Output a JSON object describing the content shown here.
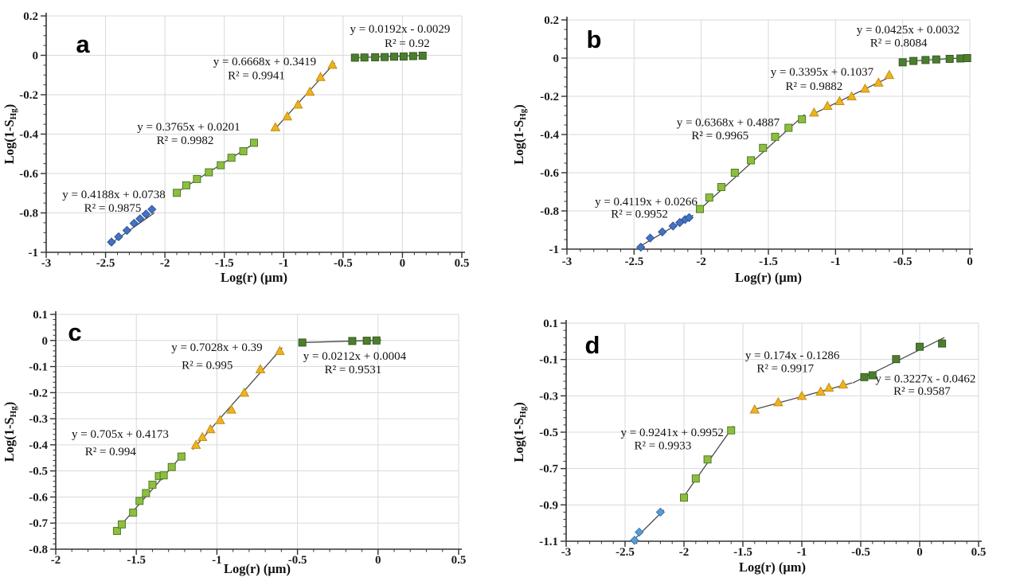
{
  "figure_title": "",
  "chart_data": [
    {
      "type": "scatter",
      "panel_label": "a",
      "xlabel": "Log(r) (μm)",
      "ylabel_parts": [
        "Log(1-S",
        "Hg",
        ")"
      ],
      "xlim": [
        -3,
        0.5
      ],
      "ylim": [
        -1,
        0.2
      ],
      "xticks": [
        -3,
        -2.5,
        -2,
        -1.5,
        -1,
        -0.5,
        0,
        0.5
      ],
      "yticks": [
        0.2,
        0,
        -0.2,
        -0.4,
        -0.6,
        -0.8,
        -1
      ],
      "x_minor_step": 0.1,
      "y_minor_step": 0.05,
      "grid": true,
      "legend": "none",
      "series": [
        {
          "name": "segment-1-blue-diamonds",
          "marker": "diamond",
          "fill": "#4472C4",
          "stroke": "#2E5597",
          "points": [
            [
              -2.45,
              -0.948
            ],
            [
              -2.39,
              -0.921
            ],
            [
              -2.32,
              -0.889
            ],
            [
              -2.26,
              -0.853
            ],
            [
              -2.21,
              -0.83
            ],
            [
              -2.16,
              -0.806
            ],
            [
              -2.11,
              -0.782
            ]
          ],
          "trend": [
            -2.47,
            -0.961,
            -2.09,
            -0.8
          ],
          "equation": {
            "line1": "y = 0.4188x + 0.0738",
            "line2": "R² = 0.9875",
            "pos1": [
              -2.43,
              -0.706
            ],
            "pos2": [
              -2.44,
              -0.773
            ]
          }
        },
        {
          "name": "segment-2-green-squares",
          "marker": "square",
          "fill": "#8EBE3E",
          "stroke": "#4F7B28",
          "points": [
            [
              -1.9,
              -0.698
            ],
            [
              -1.82,
              -0.66
            ],
            [
              -1.73,
              -0.628
            ],
            [
              -1.63,
              -0.594
            ],
            [
              -1.53,
              -0.558
            ],
            [
              -1.44,
              -0.52
            ],
            [
              -1.34,
              -0.487
            ],
            [
              -1.25,
              -0.444
            ]
          ],
          "trend": [
            -1.93,
            -0.707,
            -1.23,
            -0.441
          ],
          "equation": {
            "line1": "y = 0.3765x + 0.0201",
            "line2": "R² = 0.9982",
            "pos1": [
              -1.8,
              -0.362
            ],
            "pos2": [
              -1.83,
              -0.43
            ]
          }
        },
        {
          "name": "segment-3-orange-triangles",
          "marker": "triangle",
          "fill": "#EFB320",
          "stroke": "#C28E12",
          "points": [
            [
              -1.07,
              -0.365
            ],
            [
              -0.97,
              -0.31
            ],
            [
              -0.88,
              -0.25
            ],
            [
              -0.78,
              -0.185
            ],
            [
              -0.69,
              -0.11
            ],
            [
              -0.59,
              -0.048
            ]
          ],
          "trend": [
            -1.09,
            -0.385,
            -0.57,
            -0.038
          ],
          "equation": {
            "line1": "y = 0.6668x + 0.3419",
            "line2": "R² = 0.9941",
            "pos1": [
              -1.16,
              -0.03
            ],
            "pos2": [
              -1.23,
              -0.1
            ]
          }
        },
        {
          "name": "segment-4-dark-green-squares",
          "marker": "square",
          "fill": "#4B7F2F",
          "stroke": "#38591F",
          "points": [
            [
              -0.4,
              -0.012
            ],
            [
              -0.32,
              -0.011
            ],
            [
              -0.23,
              -0.01
            ],
            [
              -0.15,
              -0.009
            ],
            [
              -0.07,
              -0.007
            ],
            [
              0.01,
              -0.006
            ],
            [
              0.09,
              -0.004
            ],
            [
              0.17,
              -0.002
            ]
          ],
          "trend": [
            -0.42,
            -0.012,
            0.19,
            0.0
          ],
          "equation": {
            "line1": "y = 0.0192x - 0.0029",
            "line2": "R² = 0.92",
            "pos1": [
              -0.02,
              0.135
            ],
            "pos2": [
              0.04,
              0.062
            ]
          }
        }
      ]
    },
    {
      "type": "scatter",
      "panel_label": "b",
      "xlabel": "Log(r) (μm)",
      "ylabel_parts": [
        "Log(1-S",
        "Hg",
        ")"
      ],
      "xlim": [
        -3,
        0
      ],
      "ylim": [
        -1,
        0.2
      ],
      "xticks": [
        -3,
        -2.5,
        -2,
        -1.5,
        -1,
        -0.5,
        0
      ],
      "yticks": [
        0.2,
        0,
        -0.2,
        -0.4,
        -0.6,
        -0.8,
        -1
      ],
      "x_minor_step": 0.1,
      "y_minor_step": 0.05,
      "grid": true,
      "legend": "none",
      "series": [
        {
          "name": "segment-1-blue-diamonds",
          "marker": "diamond",
          "fill": "#4472C4",
          "stroke": "#2E5597",
          "points": [
            [
              -2.45,
              -0.99
            ],
            [
              -2.38,
              -0.942
            ],
            [
              -2.29,
              -0.91
            ],
            [
              -2.21,
              -0.879
            ],
            [
              -2.16,
              -0.861
            ],
            [
              -2.12,
              -0.845
            ],
            [
              -2.09,
              -0.835
            ]
          ],
          "trend": [
            -2.47,
            -0.991,
            -2.06,
            -0.822
          ],
          "equation": {
            "line1": "y = 0.4119x + 0.0266",
            "line2": "R² = 0.9952",
            "pos1": [
              -2.41,
              -0.751
            ],
            "pos2": [
              -2.46,
              -0.814
            ]
          }
        },
        {
          "name": "segment-2-green-squares",
          "marker": "square",
          "fill": "#8EBE3E",
          "stroke": "#4F7B28",
          "points": [
            [
              -2.01,
              -0.79
            ],
            [
              -1.94,
              -0.73
            ],
            [
              -1.85,
              -0.675
            ],
            [
              -1.75,
              -0.6
            ],
            [
              -1.63,
              -0.535
            ],
            [
              -1.54,
              -0.47
            ],
            [
              -1.45,
              -0.412
            ],
            [
              -1.35,
              -0.365
            ],
            [
              -1.25,
              -0.32
            ]
          ],
          "trend": [
            -2.02,
            -0.798,
            -1.23,
            -0.295
          ],
          "equation": {
            "line1": "y = 0.6368x + 0.4887",
            "line2": "R² = 0.9965",
            "pos1": [
              -1.8,
              -0.335
            ],
            "pos2": [
              -1.86,
              -0.405
            ]
          }
        },
        {
          "name": "segment-3-orange-triangles",
          "marker": "triangle",
          "fill": "#EFB320",
          "stroke": "#C28E12",
          "points": [
            [
              -1.16,
              -0.285
            ],
            [
              -1.06,
              -0.25
            ],
            [
              -0.97,
              -0.225
            ],
            [
              -0.88,
              -0.2
            ],
            [
              -0.78,
              -0.16
            ],
            [
              -0.68,
              -0.128
            ],
            [
              -0.6,
              -0.088
            ]
          ],
          "trend": [
            -1.18,
            -0.297,
            -0.575,
            -0.092
          ],
          "equation": {
            "line1": "y = 0.3395x + 0.1037",
            "line2": "R² = 0.9882",
            "pos1": [
              -1.1,
              -0.071
            ],
            "pos2": [
              -1.16,
              -0.145
            ]
          }
        },
        {
          "name": "segment-4-dark-green-squares",
          "marker": "square",
          "fill": "#4B7F2F",
          "stroke": "#38591F",
          "points": [
            [
              -0.5,
              -0.022
            ],
            [
              -0.42,
              -0.015
            ],
            [
              -0.33,
              -0.01
            ],
            [
              -0.25,
              -0.007
            ],
            [
              -0.15,
              -0.004
            ],
            [
              -0.07,
              -0.002
            ],
            [
              -0.02,
              0.0
            ]
          ],
          "trend": [
            -0.52,
            -0.019,
            -0.01,
            0.003
          ],
          "equation": {
            "line1": "y = 0.0425x + 0.0032",
            "line2": "R² = 0.8084",
            "pos1": [
              -0.46,
              0.15
            ],
            "pos2": [
              -0.53,
              0.082
            ]
          }
        }
      ]
    },
    {
      "type": "scatter",
      "panel_label": "c",
      "xlabel": "Log(r) (μm)",
      "ylabel_parts": [
        "Log(1-S",
        "Hg",
        ")"
      ],
      "xlim": [
        -2,
        0.5
      ],
      "ylim": [
        -0.8,
        0.1
      ],
      "xticks": [
        -2,
        -1.5,
        -1,
        -0.5,
        0,
        0.5
      ],
      "yticks": [
        0.1,
        0,
        -0.1,
        -0.2,
        -0.3,
        -0.4,
        -0.5,
        -0.6,
        -0.7,
        -0.8
      ],
      "x_minor_step": 0.1,
      "y_minor_step": 0.02,
      "grid": true,
      "legend": "none",
      "series": [
        {
          "name": "segment-1-green-squares",
          "marker": "square",
          "fill": "#8EBE3E",
          "stroke": "#4F7B28",
          "points": [
            [
              -1.62,
              -0.73
            ],
            [
              -1.59,
              -0.705
            ],
            [
              -1.52,
              -0.66
            ],
            [
              -1.48,
              -0.615
            ],
            [
              -1.44,
              -0.585
            ],
            [
              -1.4,
              -0.553
            ],
            [
              -1.36,
              -0.52
            ],
            [
              -1.33,
              -0.517
            ],
            [
              -1.28,
              -0.485
            ],
            [
              -1.22,
              -0.445
            ]
          ],
          "trend": [
            -1.64,
            -0.739,
            -1.2,
            -0.429
          ],
          "equation": {
            "line1": "y = 0.705x + 0.4173",
            "line2": "R² = 0.994",
            "pos1": [
              -1.6,
              -0.357
            ],
            "pos2": [
              -1.66,
              -0.425
            ]
          }
        },
        {
          "name": "segment-2-orange-triangles",
          "marker": "triangle",
          "fill": "#EFB320",
          "stroke": "#C28E12",
          "points": [
            [
              -1.13,
              -0.4
            ],
            [
              -1.09,
              -0.37
            ],
            [
              -1.04,
              -0.34
            ],
            [
              -0.98,
              -0.305
            ],
            [
              -0.91,
              -0.265
            ],
            [
              -0.83,
              -0.2
            ],
            [
              -0.73,
              -0.11
            ],
            [
              -0.61,
              -0.04
            ]
          ],
          "trend": [
            -1.15,
            -0.418,
            -0.595,
            -0.028
          ],
          "equation": {
            "line1": "y = 0.7028x + 0.39",
            "line2": "R² = 0.995",
            "pos1": [
              -1.0,
              -0.025
            ],
            "pos2": [
              -1.06,
              -0.093
            ]
          }
        },
        {
          "name": "segment-3-dark-green-squares",
          "marker": "square",
          "fill": "#4B7F2F",
          "stroke": "#38591F",
          "points": [
            [
              -0.47,
              -0.008
            ],
            [
              -0.16,
              -0.002
            ],
            [
              -0.07,
              -0.001
            ],
            [
              -0.01,
              0.0
            ]
          ],
          "trend": [
            -0.48,
            -0.008,
            0.02,
            0.001
          ],
          "equation": {
            "line1": "y = 0.0212x + 0.0004",
            "line2": "R² = 0.9531",
            "pos1": [
              -0.145,
              -0.058
            ],
            "pos2": [
              -0.155,
              -0.11
            ]
          }
        }
      ]
    },
    {
      "type": "scatter",
      "panel_label": "d",
      "xlabel": "Log(r) (μm)",
      "ylabel_parts": [
        "Log(1-S",
        "Hg",
        ")"
      ],
      "xlim": [
        -3,
        0.5
      ],
      "ylim": [
        -1.1,
        0.1
      ],
      "xticks": [
        -3,
        -2.5,
        -2,
        -1.5,
        -1,
        -0.5,
        0,
        0.5
      ],
      "yticks": [
        0.1,
        -0.1,
        -0.3,
        -0.5,
        -0.7,
        -0.9,
        -1.1
      ],
      "x_minor_step": 0.1,
      "y_minor_step": 0.04,
      "grid": true,
      "legend": "none",
      "series": [
        {
          "name": "segment-1-blue-diamonds",
          "marker": "diamond",
          "fill": "#5B9BD5",
          "stroke": "#3A78B5",
          "points": [
            [
              -2.42,
              -1.095
            ],
            [
              -2.38,
              -1.05
            ],
            [
              -2.2,
              -0.94
            ]
          ],
          "trend": [
            -2.44,
            -1.102,
            -2.17,
            -0.928
          ],
          "equation": null
        },
        {
          "name": "segment-2-green-squares",
          "marker": "square",
          "fill": "#8EBE3E",
          "stroke": "#4F7B28",
          "points": [
            [
              -2.0,
              -0.86
            ],
            [
              -1.9,
              -0.755
            ],
            [
              -1.8,
              -0.65
            ],
            [
              -1.6,
              -0.49
            ]
          ],
          "trend": [
            -2.01,
            -0.862,
            -1.58,
            -0.466
          ],
          "equation": {
            "line1": "y = 0.9241x + 0.9952",
            "line2": "R² = 0.9933",
            "pos1": [
              -2.1,
              -0.5
            ],
            "pos2": [
              -2.18,
              -0.572
            ]
          }
        },
        {
          "name": "segment-3-orange-triangles",
          "marker": "triangle",
          "fill": "#EFB320",
          "stroke": "#C28E12",
          "points": [
            [
              -1.4,
              -0.375
            ],
            [
              -1.2,
              -0.335
            ],
            [
              -1.0,
              -0.3
            ],
            [
              -0.84,
              -0.276
            ],
            [
              -0.77,
              -0.255
            ],
            [
              -0.65,
              -0.237
            ]
          ],
          "trend": [
            -1.42,
            -0.378,
            -0.575,
            -0.229
          ],
          "equation": {
            "line1": "y = 0.174x - 0.1286",
            "line2": "R² = 0.9917",
            "pos1": [
              -1.08,
              -0.075
            ],
            "pos2": [
              -1.14,
              -0.148
            ]
          }
        },
        {
          "name": "segment-4-dark-green-squares",
          "marker": "square",
          "fill": "#4B7F2F",
          "stroke": "#38591F",
          "points": [
            [
              -0.47,
              -0.197
            ],
            [
              -0.4,
              -0.187
            ],
            [
              -0.2,
              -0.098
            ],
            [
              0.0,
              -0.03
            ],
            [
              0.19,
              -0.012
            ]
          ],
          "trend": [
            -0.57,
            -0.23,
            0.21,
            0.021
          ],
          "equation": {
            "line1": "y = 0.3227x - 0.0462",
            "line2": "R² = 0.9587",
            "pos1": [
              0.05,
              -0.205
            ],
            "pos2": [
              0.02,
              -0.272
            ]
          }
        }
      ]
    }
  ],
  "colors": {
    "grid": "#d9d9d9",
    "axis": "#333333",
    "trend_line": "#4a4a4a",
    "text": "#111111"
  }
}
